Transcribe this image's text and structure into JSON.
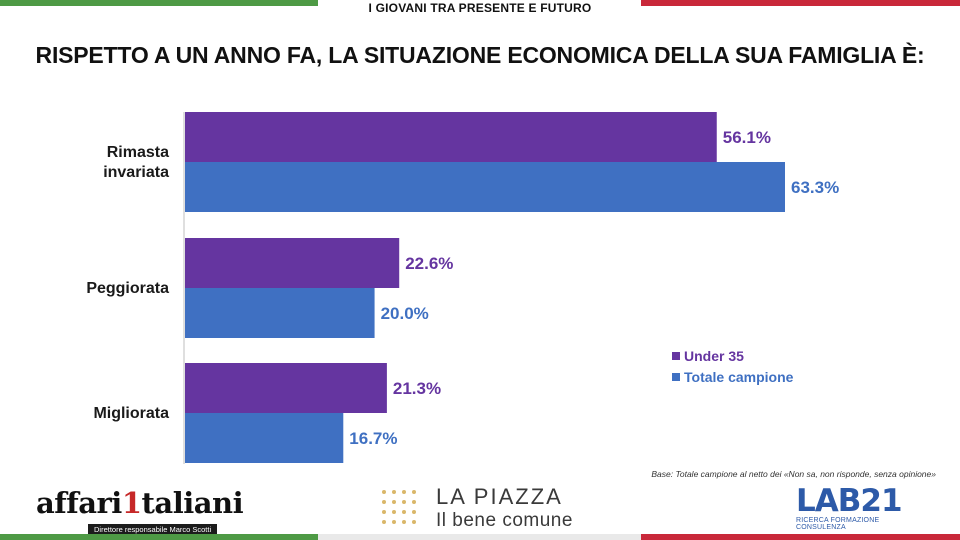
{
  "header": {
    "label": "I GIOVANI TRA PRESENTE E FUTURO"
  },
  "title": "RISPETTO A UN ANNO FA, LA SITUAZIONE ECONOMICA DELLA SUA FAMIGLIA È:",
  "colors": {
    "under35": "#6535a0",
    "totale": "#3f70c2",
    "green": "#4e9a45",
    "red": "#c9283a"
  },
  "chart_data": {
    "type": "bar",
    "orientation": "horizontal",
    "categories": [
      [
        "Rimasta",
        "invariata"
      ],
      [
        "Peggiorata"
      ],
      [
        "Migliorata"
      ]
    ],
    "series": [
      {
        "name": "Under 35",
        "values": [
          56.1,
          22.6,
          21.3
        ],
        "labels": [
          "56.1%",
          "22.6%",
          "21.3%"
        ]
      },
      {
        "name": "Totale campione",
        "values": [
          63.3,
          20.0,
          16.7
        ],
        "labels": [
          "63.3%",
          "20.0%",
          "16.7%"
        ]
      }
    ],
    "xlim": [
      0,
      63.3
    ],
    "grid": false,
    "legend_position": "right"
  },
  "note": "Base: Totale campione al netto dei «Non sa, non risponde, senza opinione»",
  "logos": {
    "affari": {
      "prefix": "affari",
      "one": "1",
      "suffix": "taliani",
      "sub": "Direttore responsabile Marco Scotti"
    },
    "piazza": {
      "title": "LA PIAZZA",
      "sub": "Il bene comune"
    },
    "lab": {
      "word": "LAB21",
      "sub": "RICERCA FORMAZIONE CONSULENZA"
    }
  }
}
